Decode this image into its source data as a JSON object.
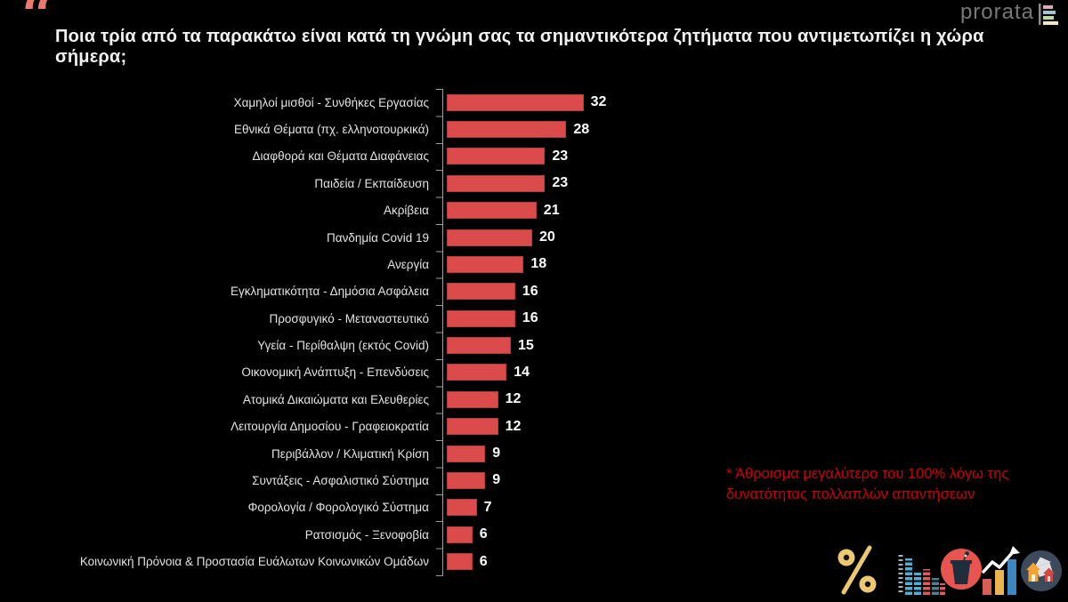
{
  "title": "Ποια τρία από τα παρακάτω είναι κατά τη γνώμη σας τα σημαντικότερα ζητήματα που αντιμετωπίζει η χώρα σήμερα;",
  "logo": {
    "text": "prorata",
    "icon": "bar-chart-logo-icon",
    "bar_colors": [
      "#dfa6bc",
      "#a9c0d4",
      "#bdd9a6",
      "#efe7c9"
    ]
  },
  "chart_data": {
    "type": "bar",
    "orientation": "horizontal",
    "categories": [
      "Χαμηλοί μισθοί - Συνθήκες Εργασίας",
      "Εθνικά Θέματα (πχ. ελληνοτουρκικά)",
      "Διαφθορά και Θέματα Διαφάνειας",
      "Παιδεία / Εκπαίδευση",
      "Ακρίβεια",
      "Πανδημία Covid 19",
      "Ανεργία",
      "Εγκληματικότητα - Δημόσια Ασφάλεια",
      "Προσφυγικό - Μεταναστευτικό",
      "Υγεία - Περίθαλψη (εκτός Covid)",
      "Οικονομική Ανάπτυξη - Επενδύσεις",
      "Ατομικά Δικαιώματα και Ελευθερίες",
      "Λειτουργία Δημοσίου - Γραφειοκρατία",
      "Περιβάλλον / Κλιματική Κρίση",
      "Συντάξεις - Ασφαλιστικό Σύστημα",
      "Φορολογία / Φορολογικό Σύστημα",
      "Ρατσισμός - Ξενοφοβία",
      "Κοινωνική Πρόνοια & Προστασία Ευάλωτων Κοινωνικών Ομάδων"
    ],
    "values": [
      32,
      28,
      23,
      23,
      21,
      20,
      18,
      16,
      16,
      15,
      14,
      12,
      12,
      9,
      9,
      7,
      6,
      6
    ],
    "title": "Ποια τρία από τα παρακάτω είναι κατά τη γνώμη σας τα σημαντικότερα ζητήματα που αντιμετωπίζει η χώρα σήμερα;",
    "xlabel": "",
    "ylabel": "",
    "xlim": [
      0,
      33
    ],
    "grid": false,
    "legend": false,
    "bar_color": "#dc4b4b",
    "value_label_color": "#ffffff",
    "axis_color": "#9d9d9d"
  },
  "annotation": {
    "text": "* Άθροισμα μεγαλύτερο του 100% λόγω της δυνατότητας πολλαπλών απαντήσεων",
    "color": "#cc0000"
  },
  "footer_icons": [
    {
      "name": "percent-icon",
      "color": "#ecc873"
    },
    {
      "name": "segmented-bar-chart-icon",
      "color": "#4fb0d6"
    },
    {
      "name": "podium-microphone-icon",
      "color": "#e8554e"
    },
    {
      "name": "trend-arrow-chart-icon",
      "color": "#3e86c0"
    },
    {
      "name": "houses-icon",
      "color": "#3d4a5c"
    }
  ],
  "colors": {
    "background": "#000000",
    "title": "#f2f2f2",
    "quote": "#e8796e",
    "label": "#e3e3e3",
    "logo_text": "#787878"
  }
}
